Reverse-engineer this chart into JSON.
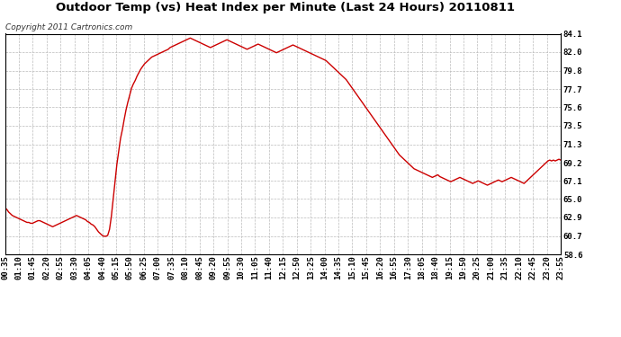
{
  "title": "Outdoor Temp (vs) Heat Index per Minute (Last 24 Hours) 20110811",
  "copyright": "Copyright 2011 Cartronics.com",
  "line_color": "#cc0000",
  "bg_color": "#ffffff",
  "plot_bg_color": "#ffffff",
  "grid_color": "#bbbbbb",
  "ylim": [
    58.6,
    84.1
  ],
  "yticks": [
    58.6,
    60.7,
    62.9,
    65.0,
    67.1,
    69.2,
    71.3,
    73.5,
    75.6,
    77.7,
    79.8,
    82.0,
    84.1
  ],
  "xtick_labels": [
    "00:35",
    "01:10",
    "01:45",
    "02:20",
    "02:55",
    "03:30",
    "04:05",
    "04:40",
    "05:15",
    "05:50",
    "06:25",
    "07:00",
    "07:35",
    "08:10",
    "08:45",
    "09:20",
    "09:55",
    "10:30",
    "11:05",
    "11:40",
    "12:15",
    "12:50",
    "13:25",
    "14:00",
    "14:35",
    "15:10",
    "15:45",
    "16:20",
    "16:55",
    "17:30",
    "18:05",
    "18:40",
    "19:15",
    "19:50",
    "20:25",
    "21:00",
    "21:35",
    "22:10",
    "22:45",
    "23:20",
    "23:55"
  ],
  "title_fontsize": 9.5,
  "copyright_fontsize": 6.5,
  "tick_fontsize": 6.5,
  "line_width": 1.0,
  "data_y": [
    64.0,
    63.8,
    63.5,
    63.3,
    63.1,
    63.0,
    62.9,
    62.8,
    62.7,
    62.6,
    62.5,
    62.4,
    62.3,
    62.3,
    62.2,
    62.2,
    62.3,
    62.4,
    62.5,
    62.5,
    62.4,
    62.3,
    62.2,
    62.1,
    62.0,
    61.9,
    61.8,
    61.9,
    62.0,
    62.1,
    62.2,
    62.3,
    62.4,
    62.5,
    62.6,
    62.7,
    62.8,
    62.9,
    63.0,
    63.1,
    63.0,
    62.9,
    62.8,
    62.7,
    62.6,
    62.4,
    62.3,
    62.1,
    62.0,
    61.8,
    61.5,
    61.2,
    61.0,
    60.8,
    60.7,
    60.7,
    60.8,
    61.5,
    63.0,
    65.0,
    67.0,
    69.0,
    70.5,
    72.0,
    73.0,
    74.2,
    75.3,
    76.2,
    77.0,
    77.8,
    78.3,
    78.7,
    79.2,
    79.6,
    80.0,
    80.3,
    80.6,
    80.8,
    81.0,
    81.2,
    81.4,
    81.5,
    81.6,
    81.7,
    81.8,
    81.9,
    82.0,
    82.1,
    82.2,
    82.3,
    82.5,
    82.6,
    82.7,
    82.8,
    82.9,
    83.0,
    83.1,
    83.2,
    83.3,
    83.4,
    83.5,
    83.6,
    83.5,
    83.4,
    83.3,
    83.2,
    83.1,
    83.0,
    82.9,
    82.8,
    82.7,
    82.6,
    82.5,
    82.6,
    82.7,
    82.8,
    82.9,
    83.0,
    83.1,
    83.2,
    83.3,
    83.4,
    83.3,
    83.2,
    83.1,
    83.0,
    82.9,
    82.8,
    82.7,
    82.6,
    82.5,
    82.4,
    82.3,
    82.4,
    82.5,
    82.6,
    82.7,
    82.8,
    82.9,
    82.8,
    82.7,
    82.6,
    82.5,
    82.4,
    82.3,
    82.2,
    82.1,
    82.0,
    81.9,
    82.0,
    82.1,
    82.2,
    82.3,
    82.4,
    82.5,
    82.6,
    82.7,
    82.8,
    82.7,
    82.6,
    82.5,
    82.4,
    82.3,
    82.2,
    82.1,
    82.0,
    81.9,
    81.8,
    81.7,
    81.6,
    81.5,
    81.4,
    81.3,
    81.2,
    81.1,
    81.0,
    80.8,
    80.6,
    80.4,
    80.2,
    80.0,
    79.8,
    79.6,
    79.4,
    79.2,
    79.0,
    78.8,
    78.5,
    78.2,
    77.9,
    77.6,
    77.3,
    77.0,
    76.7,
    76.4,
    76.1,
    75.8,
    75.5,
    75.2,
    74.9,
    74.6,
    74.3,
    74.0,
    73.7,
    73.4,
    73.1,
    72.8,
    72.5,
    72.2,
    71.9,
    71.6,
    71.3,
    71.0,
    70.7,
    70.4,
    70.1,
    69.9,
    69.7,
    69.5,
    69.3,
    69.1,
    68.9,
    68.7,
    68.5,
    68.4,
    68.3,
    68.2,
    68.1,
    68.0,
    67.9,
    67.8,
    67.7,
    67.6,
    67.5,
    67.6,
    67.7,
    67.8,
    67.6,
    67.5,
    67.4,
    67.3,
    67.2,
    67.1,
    67.0,
    67.1,
    67.2,
    67.3,
    67.4,
    67.5,
    67.4,
    67.3,
    67.2,
    67.1,
    67.0,
    66.9,
    66.8,
    66.9,
    67.0,
    67.1,
    67.0,
    66.9,
    66.8,
    66.7,
    66.6,
    66.7,
    66.8,
    66.9,
    67.0,
    67.1,
    67.2,
    67.1,
    67.0,
    67.1,
    67.2,
    67.3,
    67.4,
    67.5,
    67.4,
    67.3,
    67.2,
    67.1,
    67.0,
    66.9,
    66.8,
    67.0,
    67.2,
    67.4,
    67.6,
    67.8,
    68.0,
    68.2,
    68.4,
    68.6,
    68.8,
    69.0,
    69.2,
    69.4,
    69.5,
    69.4,
    69.5,
    69.4,
    69.5,
    69.6,
    69.5
  ]
}
